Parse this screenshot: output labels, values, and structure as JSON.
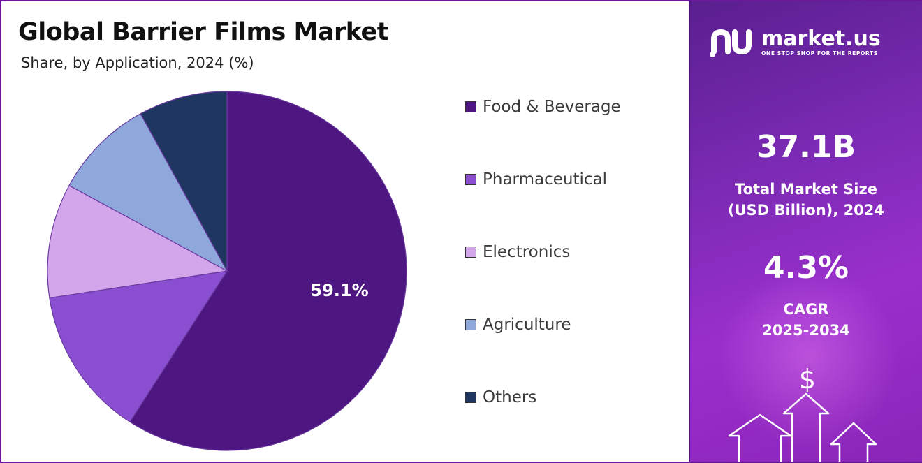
{
  "header": {
    "title": "Global Barrier Films Market",
    "subtitle": "Share, by Application, 2024 (%)"
  },
  "chart_data": {
    "type": "pie",
    "title": "Global Barrier Films Market",
    "subtitle": "Share, by Application, 2024 (%)",
    "categories": [
      "Food & Beverage",
      "Pharmaceutical",
      "Electronics",
      "Agriculture",
      "Others"
    ],
    "values": [
      59.1,
      13.5,
      10.3,
      9.1,
      8.0
    ],
    "colors": [
      "#4d1680",
      "#8a4fd0",
      "#d3a6ec",
      "#8fa8dc",
      "#1f3661"
    ],
    "data_labels": [
      "59.1%",
      "",
      "",
      "",
      ""
    ],
    "legend_position": "right",
    "start": "12 o'clock",
    "direction": "clockwise"
  },
  "legend": {
    "items": [
      {
        "label": "Food & Beverage",
        "color": "#4d1680"
      },
      {
        "label": "Pharmaceutical",
        "color": "#8a4fd0"
      },
      {
        "label": "Electronics",
        "color": "#d3a6ec"
      },
      {
        "label": "Agriculture",
        "color": "#8fa8dc"
      },
      {
        "label": "Others",
        "color": "#1f3661"
      }
    ]
  },
  "brand": {
    "name": "market.us",
    "tagline": "ONE STOP SHOP FOR THE REPORTS"
  },
  "stats": {
    "market_size_value": "37.1B",
    "market_size_caption_line1": "Total Market Size",
    "market_size_caption_line2": "(USD Billion), 2024",
    "cagr_value": "4.3%",
    "cagr_caption_line1": "CAGR",
    "cagr_caption_line2": "2025-2034"
  },
  "decor": {
    "currency_symbol": "$"
  }
}
